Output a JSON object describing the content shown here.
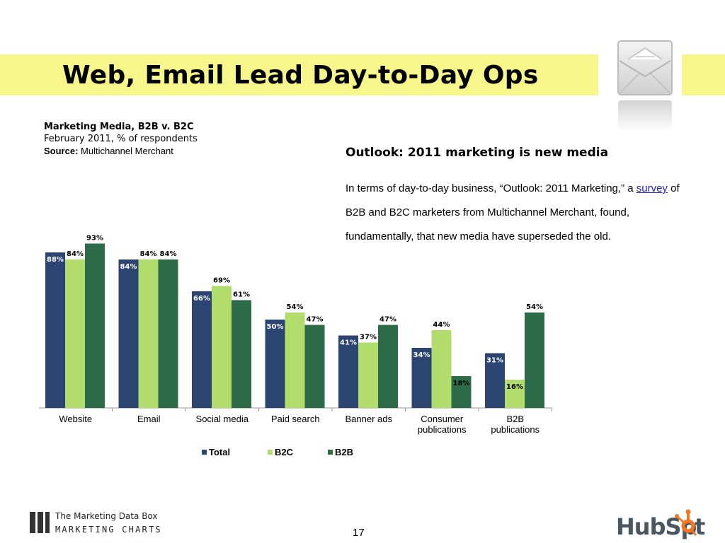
{
  "slide": {
    "title": "Web, Email Lead Day-to-Day Ops",
    "page_number": "17"
  },
  "chart_header": {
    "title": "Marketing Media, B2B v. B2C",
    "subtitle": "February 2011, % of respondents",
    "source_label": "Source:",
    "source_value": " Multichannel Merchant"
  },
  "outlook": {
    "heading": "Outlook: 2011 marketing is new media",
    "text_before": "In terms of day-to-day business, “Outlook: 2011 Marketing,” a ",
    "link_text": "survey",
    "text_after": " of B2B and B2C marketers from Multichannel Merchant, found, fundamentally, that new media have superseded the old."
  },
  "footer": {
    "brand_line1": "The Marketing Data Box",
    "brand_line2": "MARKETING CHARTS",
    "hubspot_left": "HubSp",
    "hubspot_right": "t"
  },
  "colors": {
    "title_band": "#f7f68a",
    "total": "#2c4472",
    "b2c": "#b2dc6c",
    "b2b": "#2e6b48"
  },
  "icons": [
    "envelope-icon",
    "hubspot-sprocket-icon"
  ],
  "chart_data": {
    "type": "bar",
    "categories": [
      "Website",
      "Email",
      "Social media",
      "Paid search",
      "Banner ads",
      "Consumer publications",
      "B2B publications"
    ],
    "category_lines": [
      [
        "Website"
      ],
      [
        "Email"
      ],
      [
        "Social media"
      ],
      [
        "Paid search"
      ],
      [
        "Banner ads"
      ],
      [
        "Consumer",
        "publications"
      ],
      [
        "B2B",
        "publications"
      ]
    ],
    "series": [
      {
        "name": "Total",
        "values": [
          88,
          84,
          66,
          50,
          41,
          34,
          31
        ],
        "color": "#2c4472"
      },
      {
        "name": "B2C",
        "values": [
          84,
          84,
          69,
          54,
          37,
          44,
          16
        ],
        "color": "#b2dc6c"
      },
      {
        "name": "B2B",
        "values": [
          93,
          84,
          61,
          47,
          47,
          18,
          54
        ],
        "color": "#2e6b48"
      }
    ],
    "value_suffix": "%",
    "ylim": [
      0,
      100
    ],
    "grid": false,
    "legend": "bottom"
  }
}
